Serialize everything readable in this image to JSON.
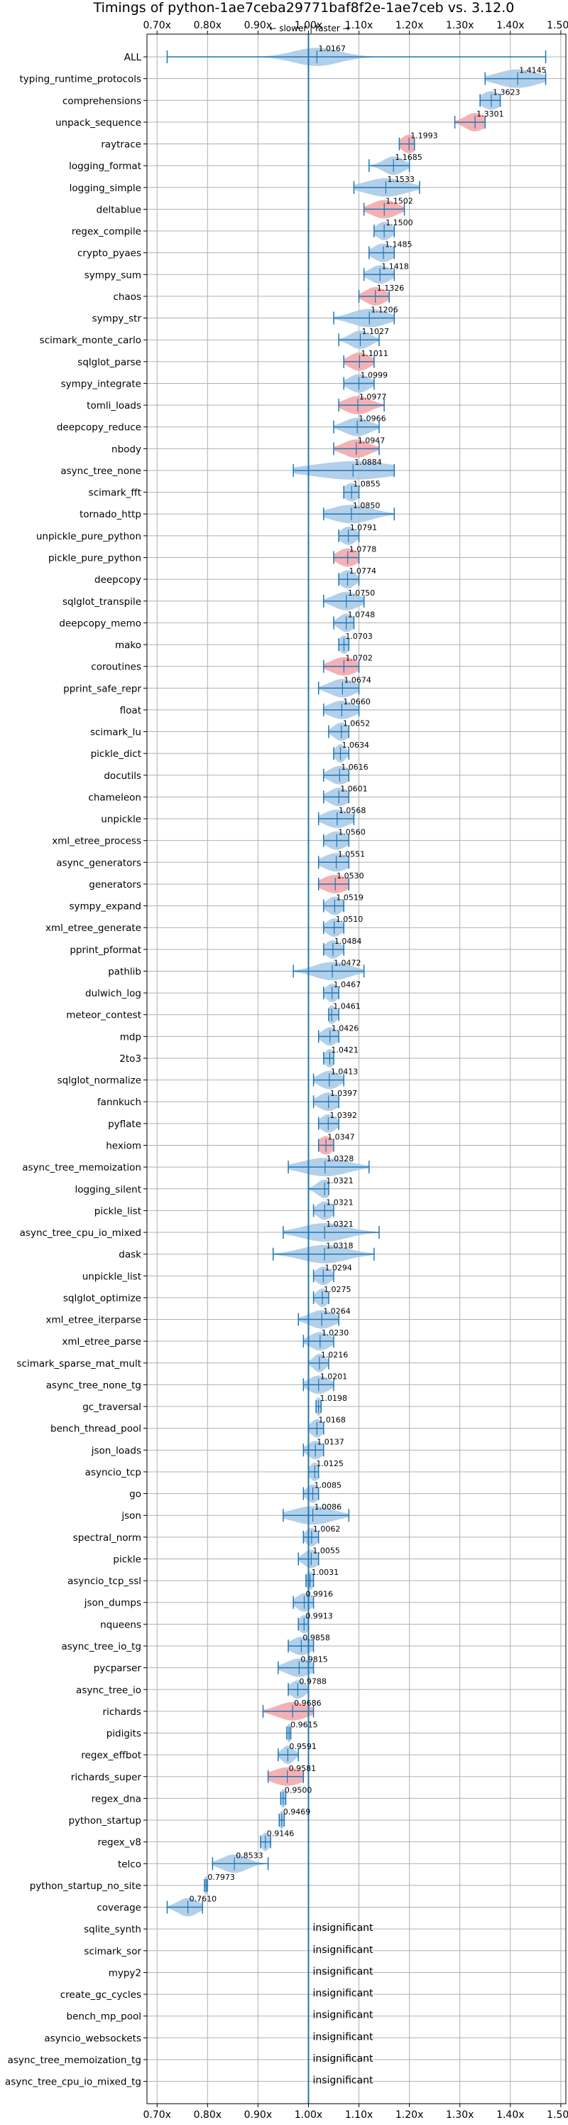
{
  "chart_data": {
    "type": "violin",
    "title": "Timings of python-1ae7ceba29771baf8f2e-1ae7ceb vs. 3.12.0",
    "subtitle": "← slower | faster →",
    "xlim": [
      0.68,
      1.51
    ],
    "x_ticks": [
      0.7,
      0.8,
      0.9,
      1.0,
      1.1,
      1.2,
      1.3,
      1.4,
      1.5
    ],
    "x_tick_labels": [
      "0.70x",
      "0.80x",
      "0.90x",
      "1.00x",
      "1.10x",
      "1.20x",
      "1.30x",
      "1.40x",
      "1.50x"
    ],
    "reference_line": 1.0,
    "grid": true,
    "colors": {
      "normal": "#a6c8e6",
      "highlight": "#f2a3a8",
      "line": "#1f77b4"
    },
    "insignificant_label": "insignificant",
    "benchmarks": [
      {
        "name": "ALL",
        "value": 1.0167,
        "label": "1.0167",
        "lo": 0.72,
        "hi": 1.47,
        "spread": 0.045,
        "highlight": false
      },
      {
        "name": "typing_runtime_protocols",
        "value": 1.4145,
        "label": "1.4145",
        "lo": 1.35,
        "hi": 1.47,
        "spread": 0.04,
        "highlight": false
      },
      {
        "name": "comprehensions",
        "value": 1.3623,
        "label": "1.3623",
        "lo": 1.34,
        "hi": 1.38,
        "spread": 0.02,
        "highlight": false
      },
      {
        "name": "unpack_sequence",
        "value": 1.3301,
        "label": "1.3301",
        "lo": 1.29,
        "hi": 1.35,
        "spread": 0.02,
        "highlight": true
      },
      {
        "name": "raytrace",
        "value": 1.1993,
        "label": "1.1993",
        "lo": 1.18,
        "hi": 1.21,
        "spread": 0.015,
        "highlight": true
      },
      {
        "name": "logging_format",
        "value": 1.1685,
        "label": "1.1685",
        "lo": 1.12,
        "hi": 1.2,
        "spread": 0.02,
        "highlight": false
      },
      {
        "name": "logging_simple",
        "value": 1.1533,
        "label": "1.1533",
        "lo": 1.09,
        "hi": 1.22,
        "spread": 0.04,
        "highlight": false
      },
      {
        "name": "deltablue",
        "value": 1.1502,
        "label": "1.1502",
        "lo": 1.11,
        "hi": 1.19,
        "spread": 0.025,
        "highlight": true
      },
      {
        "name": "regex_compile",
        "value": 1.15,
        "label": "1.1500",
        "lo": 1.13,
        "hi": 1.17,
        "spread": 0.015,
        "highlight": false
      },
      {
        "name": "crypto_pyaes",
        "value": 1.1485,
        "label": "1.1485",
        "lo": 1.12,
        "hi": 1.17,
        "spread": 0.02,
        "highlight": false
      },
      {
        "name": "sympy_sum",
        "value": 1.1418,
        "label": "1.1418",
        "lo": 1.11,
        "hi": 1.17,
        "spread": 0.02,
        "highlight": false
      },
      {
        "name": "chaos",
        "value": 1.1326,
        "label": "1.1326",
        "lo": 1.1,
        "hi": 1.16,
        "spread": 0.02,
        "highlight": true
      },
      {
        "name": "sympy_str",
        "value": 1.1206,
        "label": "1.1206",
        "lo": 1.05,
        "hi": 1.17,
        "spread": 0.035,
        "highlight": false
      },
      {
        "name": "scimark_monte_carlo",
        "value": 1.1027,
        "label": "1.1027",
        "lo": 1.06,
        "hi": 1.14,
        "spread": 0.02,
        "highlight": false
      },
      {
        "name": "sqlglot_parse",
        "value": 1.1011,
        "label": "1.1011",
        "lo": 1.07,
        "hi": 1.13,
        "spread": 0.02,
        "highlight": true
      },
      {
        "name": "sympy_integrate",
        "value": 1.0999,
        "label": "1.0999",
        "lo": 1.07,
        "hi": 1.13,
        "spread": 0.02,
        "highlight": false
      },
      {
        "name": "tomli_loads",
        "value": 1.0977,
        "label": "1.0977",
        "lo": 1.06,
        "hi": 1.15,
        "spread": 0.025,
        "highlight": true
      },
      {
        "name": "deepcopy_reduce",
        "value": 1.0966,
        "label": "1.0966",
        "lo": 1.05,
        "hi": 1.14,
        "spread": 0.025,
        "highlight": false
      },
      {
        "name": "nbody",
        "value": 1.0947,
        "label": "1.0947",
        "lo": 1.05,
        "hi": 1.14,
        "spread": 0.025,
        "highlight": true
      },
      {
        "name": "async_tree_none",
        "value": 1.0884,
        "label": "1.0884",
        "lo": 0.97,
        "hi": 1.17,
        "spread": 0.08,
        "highlight": false
      },
      {
        "name": "scimark_fft",
        "value": 1.0855,
        "label": "1.0855",
        "lo": 1.07,
        "hi": 1.1,
        "spread": 0.015,
        "highlight": false
      },
      {
        "name": "tornado_http",
        "value": 1.085,
        "label": "1.0850",
        "lo": 1.03,
        "hi": 1.17,
        "spread": 0.04,
        "highlight": false
      },
      {
        "name": "unpickle_pure_python",
        "value": 1.0791,
        "label": "1.0791",
        "lo": 1.06,
        "hi": 1.1,
        "spread": 0.015,
        "highlight": false
      },
      {
        "name": "pickle_pure_python",
        "value": 1.0778,
        "label": "1.0778",
        "lo": 1.05,
        "hi": 1.1,
        "spread": 0.02,
        "highlight": true
      },
      {
        "name": "deepcopy",
        "value": 1.0774,
        "label": "1.0774",
        "lo": 1.06,
        "hi": 1.1,
        "spread": 0.015,
        "highlight": false
      },
      {
        "name": "sqlglot_transpile",
        "value": 1.075,
        "label": "1.0750",
        "lo": 1.03,
        "hi": 1.11,
        "spread": 0.025,
        "highlight": false
      },
      {
        "name": "deepcopy_memo",
        "value": 1.0748,
        "label": "1.0748",
        "lo": 1.05,
        "hi": 1.09,
        "spread": 0.015,
        "highlight": false
      },
      {
        "name": "mako",
        "value": 1.0703,
        "label": "1.0703",
        "lo": 1.06,
        "hi": 1.08,
        "spread": 0.01,
        "highlight": false
      },
      {
        "name": "coroutines",
        "value": 1.0702,
        "label": "1.0702",
        "lo": 1.03,
        "hi": 1.1,
        "spread": 0.025,
        "highlight": true
      },
      {
        "name": "pprint_safe_repr",
        "value": 1.0674,
        "label": "1.0674",
        "lo": 1.02,
        "hi": 1.1,
        "spread": 0.025,
        "highlight": false
      },
      {
        "name": "float",
        "value": 1.066,
        "label": "1.0660",
        "lo": 1.03,
        "hi": 1.1,
        "spread": 0.025,
        "highlight": false
      },
      {
        "name": "scimark_lu",
        "value": 1.0652,
        "label": "1.0652",
        "lo": 1.04,
        "hi": 1.08,
        "spread": 0.015,
        "highlight": false
      },
      {
        "name": "pickle_dict",
        "value": 1.0634,
        "label": "1.0634",
        "lo": 1.05,
        "hi": 1.08,
        "spread": 0.01,
        "highlight": false
      },
      {
        "name": "docutils",
        "value": 1.0616,
        "label": "1.0616",
        "lo": 1.03,
        "hi": 1.08,
        "spread": 0.02,
        "highlight": false
      },
      {
        "name": "chameleon",
        "value": 1.0601,
        "label": "1.0601",
        "lo": 1.03,
        "hi": 1.08,
        "spread": 0.02,
        "highlight": false
      },
      {
        "name": "unpickle",
        "value": 1.0568,
        "label": "1.0568",
        "lo": 1.02,
        "hi": 1.09,
        "spread": 0.025,
        "highlight": false
      },
      {
        "name": "xml_etree_process",
        "value": 1.056,
        "label": "1.0560",
        "lo": 1.03,
        "hi": 1.08,
        "spread": 0.02,
        "highlight": false
      },
      {
        "name": "async_generators",
        "value": 1.0551,
        "label": "1.0551",
        "lo": 1.02,
        "hi": 1.08,
        "spread": 0.025,
        "highlight": false
      },
      {
        "name": "generators",
        "value": 1.053,
        "label": "1.0530",
        "lo": 1.02,
        "hi": 1.08,
        "spread": 0.025,
        "highlight": true
      },
      {
        "name": "sympy_expand",
        "value": 1.0519,
        "label": "1.0519",
        "lo": 1.03,
        "hi": 1.07,
        "spread": 0.015,
        "highlight": false
      },
      {
        "name": "xml_etree_generate",
        "value": 1.051,
        "label": "1.0510",
        "lo": 1.03,
        "hi": 1.07,
        "spread": 0.015,
        "highlight": false
      },
      {
        "name": "pprint_pformat",
        "value": 1.0484,
        "label": "1.0484",
        "lo": 1.03,
        "hi": 1.07,
        "spread": 0.015,
        "highlight": false
      },
      {
        "name": "pathlib",
        "value": 1.0472,
        "label": "1.0472",
        "lo": 0.97,
        "hi": 1.11,
        "spread": 0.035,
        "highlight": false
      },
      {
        "name": "dulwich_log",
        "value": 1.0467,
        "label": "1.0467",
        "lo": 1.03,
        "hi": 1.06,
        "spread": 0.012,
        "highlight": false
      },
      {
        "name": "meteor_contest",
        "value": 1.0461,
        "label": "1.0461",
        "lo": 1.04,
        "hi": 1.06,
        "spread": 0.01,
        "highlight": false
      },
      {
        "name": "mdp",
        "value": 1.0426,
        "label": "1.0426",
        "lo": 1.02,
        "hi": 1.06,
        "spread": 0.015,
        "highlight": false
      },
      {
        "name": "2to3",
        "value": 1.0421,
        "label": "1.0421",
        "lo": 1.03,
        "hi": 1.05,
        "spread": 0.01,
        "highlight": false
      },
      {
        "name": "sqlglot_normalize",
        "value": 1.0413,
        "label": "1.0413",
        "lo": 1.01,
        "hi": 1.07,
        "spread": 0.02,
        "highlight": false
      },
      {
        "name": "fannkuch",
        "value": 1.0397,
        "label": "1.0397",
        "lo": 1.01,
        "hi": 1.06,
        "spread": 0.02,
        "highlight": false
      },
      {
        "name": "pyflate",
        "value": 1.0392,
        "label": "1.0392",
        "lo": 1.02,
        "hi": 1.06,
        "spread": 0.015,
        "highlight": false
      },
      {
        "name": "hexiom",
        "value": 1.0347,
        "label": "1.0347",
        "lo": 1.02,
        "hi": 1.05,
        "spread": 0.015,
        "highlight": true
      },
      {
        "name": "async_tree_memoization",
        "value": 1.0328,
        "label": "1.0328",
        "lo": 0.96,
        "hi": 1.12,
        "spread": 0.045,
        "highlight": false
      },
      {
        "name": "logging_silent",
        "value": 1.0321,
        "label": "1.0321",
        "lo": 1.0,
        "hi": 1.04,
        "spread": 0.015,
        "highlight": false
      },
      {
        "name": "pickle_list",
        "value": 1.0321,
        "label": "1.0321",
        "lo": 1.01,
        "hi": 1.05,
        "spread": 0.015,
        "highlight": false
      },
      {
        "name": "async_tree_cpu_io_mixed",
        "value": 1.0321,
        "label": "1.0321",
        "lo": 0.95,
        "hi": 1.14,
        "spread": 0.045,
        "highlight": false
      },
      {
        "name": "dask",
        "value": 1.0318,
        "label": "1.0318",
        "lo": 0.93,
        "hi": 1.13,
        "spread": 0.045,
        "highlight": false
      },
      {
        "name": "unpickle_list",
        "value": 1.0294,
        "label": "1.0294",
        "lo": 1.01,
        "hi": 1.05,
        "spread": 0.015,
        "highlight": false
      },
      {
        "name": "sqlglot_optimize",
        "value": 1.0275,
        "label": "1.0275",
        "lo": 1.01,
        "hi": 1.04,
        "spread": 0.012,
        "highlight": false
      },
      {
        "name": "xml_etree_iterparse",
        "value": 1.0264,
        "label": "1.0264",
        "lo": 0.98,
        "hi": 1.06,
        "spread": 0.025,
        "highlight": false
      },
      {
        "name": "xml_etree_parse",
        "value": 1.023,
        "label": "1.0230",
        "lo": 0.99,
        "hi": 1.05,
        "spread": 0.02,
        "highlight": false
      },
      {
        "name": "scimark_sparse_mat_mult",
        "value": 1.0216,
        "label": "1.0216",
        "lo": 1.0,
        "hi": 1.04,
        "spread": 0.012,
        "highlight": false
      },
      {
        "name": "async_tree_none_tg",
        "value": 1.0201,
        "label": "1.0201",
        "lo": 0.99,
        "hi": 1.05,
        "spread": 0.02,
        "highlight": false
      },
      {
        "name": "gc_traversal",
        "value": 1.0198,
        "label": "1.0198",
        "lo": 1.015,
        "hi": 1.025,
        "spread": 0.006,
        "highlight": false
      },
      {
        "name": "bench_thread_pool",
        "value": 1.0168,
        "label": "1.0168",
        "lo": 1.0,
        "hi": 1.03,
        "spread": 0.012,
        "highlight": false
      },
      {
        "name": "json_loads",
        "value": 1.0137,
        "label": "1.0137",
        "lo": 0.99,
        "hi": 1.03,
        "spread": 0.015,
        "highlight": false
      },
      {
        "name": "asyncio_tcp",
        "value": 1.0125,
        "label": "1.0125",
        "lo": 1.0,
        "hi": 1.02,
        "spread": 0.01,
        "highlight": false
      },
      {
        "name": "go",
        "value": 1.0085,
        "label": "1.0085",
        "lo": 0.99,
        "hi": 1.02,
        "spread": 0.012,
        "highlight": false
      },
      {
        "name": "json",
        "value": 1.0086,
        "label": "1.0086",
        "lo": 0.95,
        "hi": 1.08,
        "spread": 0.04,
        "highlight": false
      },
      {
        "name": "spectral_norm",
        "value": 1.0062,
        "label": "1.0062",
        "lo": 0.99,
        "hi": 1.02,
        "spread": 0.012,
        "highlight": false
      },
      {
        "name": "pickle",
        "value": 1.0055,
        "label": "1.0055",
        "lo": 0.98,
        "hi": 1.02,
        "spread": 0.015,
        "highlight": false
      },
      {
        "name": "asyncio_tcp_ssl",
        "value": 1.0031,
        "label": "1.0031",
        "lo": 0.995,
        "hi": 1.01,
        "spread": 0.008,
        "highlight": false
      },
      {
        "name": "json_dumps",
        "value": 0.9916,
        "label": "0.9916",
        "lo": 0.97,
        "hi": 1.01,
        "spread": 0.015,
        "highlight": false
      },
      {
        "name": "nqueens",
        "value": 0.9913,
        "label": "0.9913",
        "lo": 0.98,
        "hi": 1.0,
        "spread": 0.01,
        "highlight": false
      },
      {
        "name": "async_tree_io_tg",
        "value": 0.9858,
        "label": "0.9858",
        "lo": 0.96,
        "hi": 1.01,
        "spread": 0.02,
        "highlight": false
      },
      {
        "name": "pycparser",
        "value": 0.9815,
        "label": "0.9815",
        "lo": 0.94,
        "hi": 1.01,
        "spread": 0.025,
        "highlight": false
      },
      {
        "name": "async_tree_io",
        "value": 0.9788,
        "label": "0.9788",
        "lo": 0.96,
        "hi": 1.0,
        "spread": 0.015,
        "highlight": false
      },
      {
        "name": "richards",
        "value": 0.9686,
        "label": "0.9686",
        "lo": 0.91,
        "hi": 1.01,
        "spread": 0.03,
        "highlight": true
      },
      {
        "name": "pidigits",
        "value": 0.9615,
        "label": "0.9615",
        "lo": 0.957,
        "hi": 0.965,
        "spread": 0.005,
        "highlight": false
      },
      {
        "name": "regex_effbot",
        "value": 0.9591,
        "label": "0.9591",
        "lo": 0.94,
        "hi": 0.98,
        "spread": 0.012,
        "highlight": false
      },
      {
        "name": "richards_super",
        "value": 0.9581,
        "label": "0.9581",
        "lo": 0.92,
        "hi": 0.99,
        "spread": 0.03,
        "highlight": true
      },
      {
        "name": "regex_dna",
        "value": 0.95,
        "label": "0.9500",
        "lo": 0.945,
        "hi": 0.955,
        "spread": 0.006,
        "highlight": false
      },
      {
        "name": "python_startup",
        "value": 0.9469,
        "label": "0.9469",
        "lo": 0.942,
        "hi": 0.952,
        "spread": 0.005,
        "highlight": false
      },
      {
        "name": "regex_v8",
        "value": 0.9146,
        "label": "0.9146",
        "lo": 0.905,
        "hi": 0.925,
        "spread": 0.008,
        "highlight": false
      },
      {
        "name": "telco",
        "value": 0.8533,
        "label": "0.8533",
        "lo": 0.81,
        "hi": 0.92,
        "spread": 0.025,
        "highlight": false
      },
      {
        "name": "python_startup_no_site",
        "value": 0.7973,
        "label": "0.7973",
        "lo": 0.794,
        "hi": 0.8,
        "spread": 0.004,
        "highlight": false
      },
      {
        "name": "coverage",
        "value": 0.761,
        "label": "0.7610",
        "lo": 0.72,
        "hi": 0.79,
        "spread": 0.02,
        "highlight": false
      },
      {
        "name": "sqlite_synth",
        "value": null,
        "label": "",
        "insignificant": true
      },
      {
        "name": "scimark_sor",
        "value": null,
        "label": "",
        "insignificant": true
      },
      {
        "name": "mypy2",
        "value": null,
        "label": "",
        "insignificant": true
      },
      {
        "name": "create_gc_cycles",
        "value": null,
        "label": "",
        "insignificant": true
      },
      {
        "name": "bench_mp_pool",
        "value": null,
        "label": "",
        "insignificant": true
      },
      {
        "name": "asyncio_websockets",
        "value": null,
        "label": "",
        "insignificant": true
      },
      {
        "name": "async_tree_memoization_tg",
        "value": null,
        "label": "",
        "insignificant": true
      },
      {
        "name": "async_tree_cpu_io_mixed_tg",
        "value": null,
        "label": "",
        "insignificant": true
      }
    ]
  }
}
